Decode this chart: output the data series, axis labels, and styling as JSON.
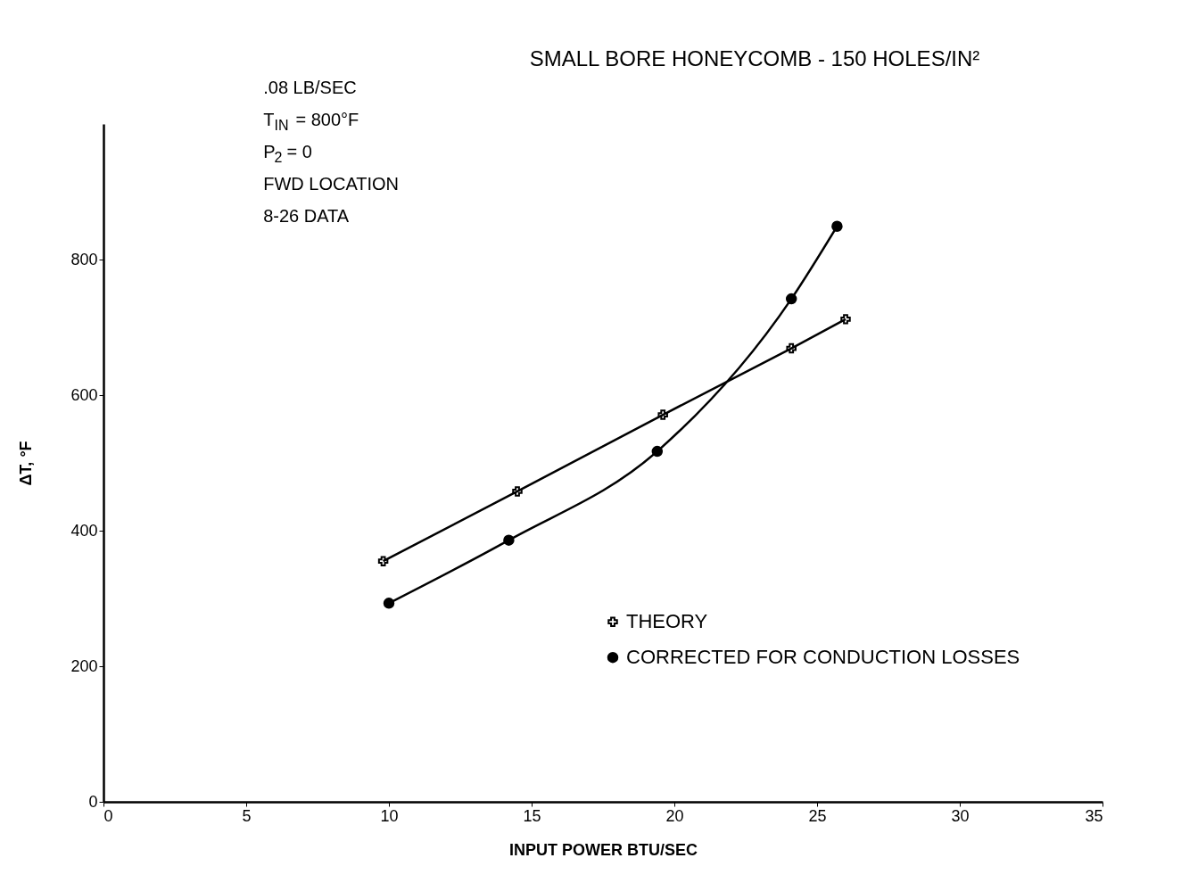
{
  "chart_data": {
    "type": "line",
    "title": "SMALL BORE HONEYCOMB - 150 HOLES/IN²",
    "xlabel": "INPUT POWER     BTU/SEC",
    "ylabel": "ΔT, °F",
    "annotations": [
      ".08 LB/SEC",
      "T$_{IN}$ = 800°F",
      "P$_{2}$ = 0",
      "FWD LOCATION",
      "8-26 DATA"
    ],
    "series": [
      {
        "name": "THEORY",
        "color": "#000000",
        "marker": "cross",
        "x": [
          9.8,
          14.5,
          19.6,
          24.1,
          26.0
        ],
        "values": [
          355,
          458,
          571,
          669,
          712
        ]
      },
      {
        "name": "CORRECTED FOR CONDUCTION LOSSES",
        "color": "#000000",
        "marker": "circle",
        "x": [
          10.0,
          14.2,
          19.4,
          24.1,
          25.7
        ],
        "values": [
          293,
          386,
          517,
          742,
          849
        ]
      }
    ],
    "xlim": [
      0,
      35
    ],
    "xticks": [
      0,
      5,
      10,
      15,
      20,
      25,
      30,
      35
    ],
    "ylim": [
      0,
      1000
    ],
    "yticks": [
      0,
      200,
      400,
      600,
      800
    ],
    "grid": false,
    "legend": "right"
  }
}
